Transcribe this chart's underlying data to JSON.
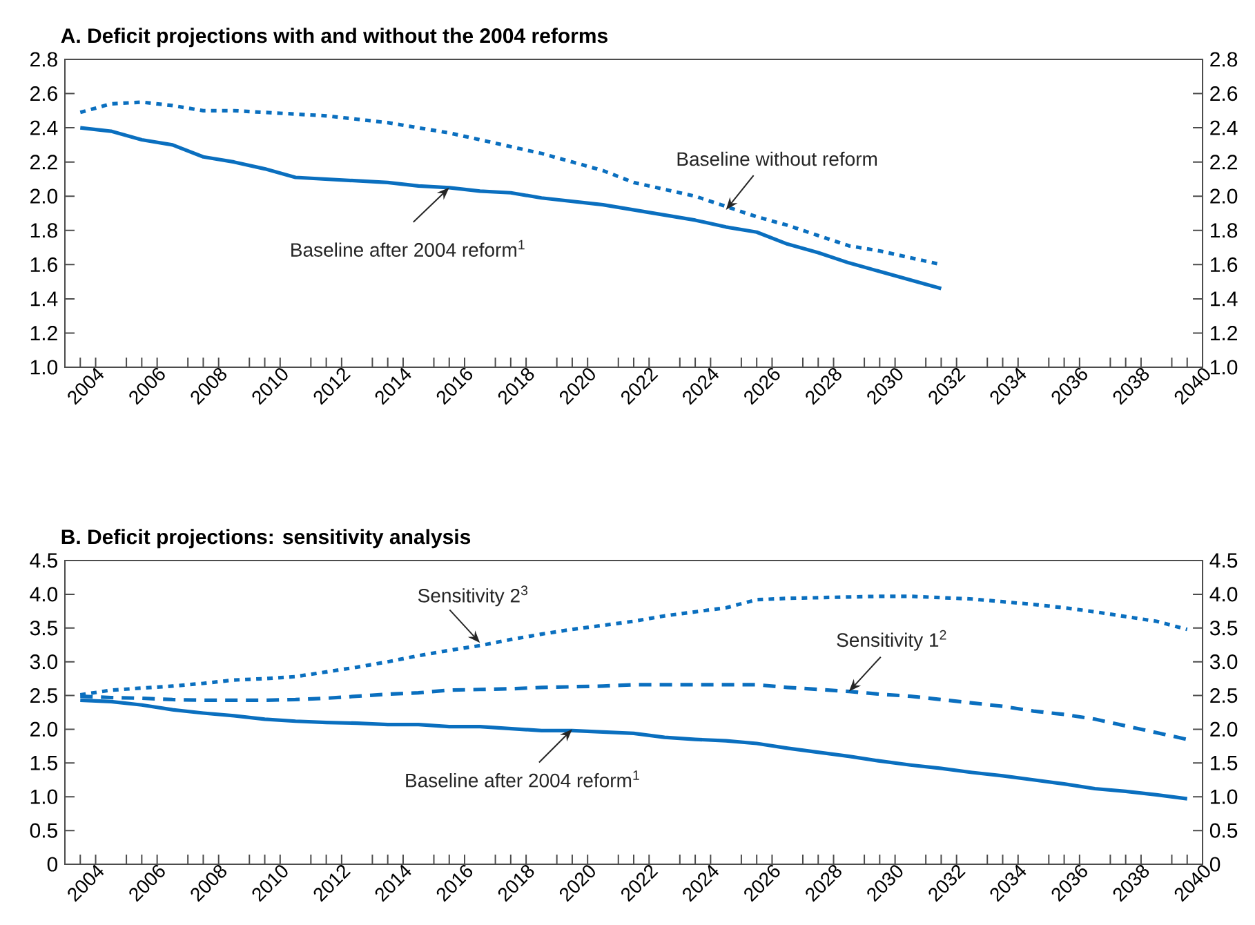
{
  "chart_data": [
    {
      "type": "line",
      "title": "A.  Deficit projections with and without the 2004 reforms",
      "xlim": [
        2003.5,
        2040.5
      ],
      "xticks": [
        2004,
        2006,
        2008,
        2010,
        2012,
        2014,
        2016,
        2018,
        2020,
        2022,
        2024,
        2026,
        2028,
        2030,
        2032,
        2034,
        2036,
        2038,
        2040,
        {
          "value": 2004.5,
          "label": null
        },
        {
          "value": 2005.5,
          "label": null
        },
        {
          "value": 2006.5,
          "label": null
        },
        {
          "value": 2007.5,
          "label": null
        },
        {
          "value": 2008.5,
          "label": null
        },
        {
          "value": 2009.5,
          "label": null
        },
        {
          "value": 2010.5,
          "label": null
        },
        {
          "value": 2011.5,
          "label": null
        },
        {
          "value": 2012.5,
          "label": null
        },
        {
          "value": 2013.5,
          "label": null
        },
        {
          "value": 2014.5,
          "label": null
        },
        {
          "value": 2015.5,
          "label": null
        },
        {
          "value": 2016.5,
          "label": null
        },
        {
          "value": 2017.5,
          "label": null
        },
        {
          "value": 2018.5,
          "label": null
        },
        {
          "value": 2019.5,
          "label": null
        },
        {
          "value": 2020.5,
          "label": null
        },
        {
          "value": 2021.5,
          "label": null
        },
        {
          "value": 2022.5,
          "label": null
        },
        {
          "value": 2023.5,
          "label": null
        },
        {
          "value": 2024.5,
          "label": null
        },
        {
          "value": 2025.5,
          "label": null
        },
        {
          "value": 2026.5,
          "label": null
        },
        {
          "value": 2027.5,
          "label": null
        },
        {
          "value": 2028.5,
          "label": null
        },
        {
          "value": 2029.5,
          "label": null
        },
        {
          "value": 2030.5,
          "label": null
        },
        {
          "value": 2031.5,
          "label": null
        },
        {
          "value": 2032.5,
          "label": null
        },
        {
          "value": 2033.5,
          "label": null
        },
        {
          "value": 2034.5,
          "label": null
        },
        {
          "value": 2035.5,
          "label": null
        },
        {
          "value": 2036.5,
          "label": null
        },
        {
          "value": 2037.5,
          "label": null
        },
        {
          "value": 2038.5,
          "label": null
        },
        {
          "value": 2039.5,
          "label": null
        }
      ],
      "ylim": [
        1.0,
        2.8
      ],
      "yticks": [
        {
          "value": 1,
          "label": "1.0"
        },
        1.2,
        1.4,
        1.6,
        1.8,
        {
          "value": 2,
          "label": "2.0"
        },
        2.2,
        2.4,
        2.6,
        2.8
      ],
      "y2lim": [
        1.0,
        2.8
      ],
      "y2ticks": [
        {
          "value": 1,
          "label": "1.0"
        },
        1.2,
        1.4,
        1.6,
        1.8,
        {
          "value": 2,
          "label": "2.0"
        },
        2.2,
        2.4,
        2.6,
        2.8
      ],
      "series": [
        {
          "color": "#0a6fbf",
          "line_style": "solid",
          "x": [
            2004,
            2005,
            2006,
            2007,
            2008,
            2009,
            2010,
            2011,
            2012,
            2013,
            2014,
            2015,
            2016,
            2017,
            2018,
            2019,
            2020,
            2021,
            2022,
            2023,
            2024,
            2025,
            2026,
            2027,
            2028,
            2029,
            2030,
            2031,
            2032
          ],
          "values": [
            2.4,
            2.38,
            2.33,
            2.3,
            2.23,
            2.2,
            2.16,
            2.11,
            2.1,
            2.09,
            2.08,
            2.06,
            2.05,
            2.03,
            2.02,
            1.99,
            1.97,
            1.95,
            1.92,
            1.89,
            1.86,
            1.82,
            1.79,
            1.72,
            1.67,
            1.61,
            1.56,
            1.51,
            1.46
          ]
        },
        {
          "color": "#0a6fbf",
          "line_style": "dotted",
          "x": [
            2004,
            2005,
            2006,
            2007,
            2008,
            2009,
            2010,
            2011,
            2012,
            2013,
            2014,
            2015,
            2016,
            2017,
            2018,
            2019,
            2020,
            2021,
            2022,
            2023,
            2024,
            2025,
            2026,
            2027,
            2028,
            2029,
            2030,
            2031,
            2032
          ],
          "values": [
            2.49,
            2.54,
            2.55,
            2.53,
            2.5,
            2.5,
            2.49,
            2.48,
            2.47,
            2.45,
            2.43,
            2.4,
            2.37,
            2.33,
            2.29,
            2.25,
            2.2,
            2.15,
            2.08,
            2.04,
            2.0,
            1.94,
            1.88,
            1.83,
            1.77,
            1.71,
            1.68,
            1.64,
            1.6
          ]
        }
      ],
      "annotations": [
        {
          "text": "Baseline without reform",
          "x": 2025,
          "y": 1.92
        },
        {
          "text": "Baseline after 2004 reform$^{1}$",
          "x": 2016,
          "y": 2.05
        }
      ]
    },
    {
      "type": "line",
      "title": "B.  Deficit projections: sensitivity analysis",
      "xlim": [
        2003.5,
        2040.5
      ],
      "xticks": [
        2004,
        2006,
        2008,
        2010,
        2012,
        2014,
        2016,
        2018,
        2020,
        2022,
        2024,
        2026,
        2028,
        2030,
        2032,
        2034,
        2036,
        2038,
        2040,
        {
          "value": 2004.5,
          "label": null
        },
        {
          "value": 2005.5,
          "label": null
        },
        {
          "value": 2006.5,
          "label": null
        },
        {
          "value": 2007.5,
          "label": null
        },
        {
          "value": 2008.5,
          "label": null
        },
        {
          "value": 2009.5,
          "label": null
        },
        {
          "value": 2010.5,
          "label": null
        },
        {
          "value": 2011.5,
          "label": null
        },
        {
          "value": 2012.5,
          "label": null
        },
        {
          "value": 2013.5,
          "label": null
        },
        {
          "value": 2014.5,
          "label": null
        },
        {
          "value": 2015.5,
          "label": null
        },
        {
          "value": 2016.5,
          "label": null
        },
        {
          "value": 2017.5,
          "label": null
        },
        {
          "value": 2018.5,
          "label": null
        },
        {
          "value": 2019.5,
          "label": null
        },
        {
          "value": 2020.5,
          "label": null
        },
        {
          "value": 2021.5,
          "label": null
        },
        {
          "value": 2022.5,
          "label": null
        },
        {
          "value": 2023.5,
          "label": null
        },
        {
          "value": 2024.5,
          "label": null
        },
        {
          "value": 2025.5,
          "label": null
        },
        {
          "value": 2026.5,
          "label": null
        },
        {
          "value": 2027.5,
          "label": null
        },
        {
          "value": 2028.5,
          "label": null
        },
        {
          "value": 2029.5,
          "label": null
        },
        {
          "value": 2030.5,
          "label": null
        },
        {
          "value": 2031.5,
          "label": null
        },
        {
          "value": 2032.5,
          "label": null
        },
        {
          "value": 2033.5,
          "label": null
        },
        {
          "value": 2034.5,
          "label": null
        },
        {
          "value": 2035.5,
          "label": null
        },
        {
          "value": 2036.5,
          "label": null
        },
        {
          "value": 2037.5,
          "label": null
        },
        {
          "value": 2038.5,
          "label": null
        },
        {
          "value": 2039.5,
          "label": null
        }
      ],
      "ylim": [
        0,
        4.5
      ],
      "yticks": [
        0,
        0.5,
        {
          "value": 1,
          "label": "1.0"
        },
        1.5,
        {
          "value": 2,
          "label": "2.0"
        },
        2.5,
        {
          "value": 3,
          "label": "3.0"
        },
        3.5,
        {
          "value": 4,
          "label": "4.0"
        },
        4.5
      ],
      "y2lim": [
        0,
        4.5
      ],
      "y2ticks": [
        0,
        0.5,
        {
          "value": 1,
          "label": "1.0"
        },
        1.5,
        {
          "value": 2,
          "label": "2.0"
        },
        2.5,
        {
          "value": 3,
          "label": "3.0"
        },
        3.5,
        {
          "value": 4,
          "label": "4.0"
        },
        4.5
      ],
      "x": [
        2004,
        2005,
        2006,
        2007,
        2008,
        2009,
        2010,
        2011,
        2012,
        2013,
        2014,
        2015,
        2016,
        2017,
        2018,
        2019,
        2020,
        2021,
        2022,
        2023,
        2024,
        2025,
        2026,
        2027,
        2028,
        2029,
        2030,
        2031,
        2032,
        2033,
        2034,
        2035,
        2036,
        2037,
        2038,
        2039,
        2040
      ],
      "series": [
        {
          "color": "#0a6fbf",
          "line_style": "solid",
          "values": [
            2.43,
            2.41,
            2.36,
            2.29,
            2.24,
            2.2,
            2.15,
            2.12,
            2.1,
            2.09,
            2.07,
            2.07,
            2.04,
            2.04,
            2.01,
            1.98,
            1.98,
            1.96,
            1.94,
            1.88,
            1.85,
            1.83,
            1.79,
            1.72,
            1.66,
            1.6,
            1.53,
            1.47,
            1.42,
            1.36,
            1.31,
            1.25,
            1.19,
            1.12,
            1.08,
            1.03,
            0.97
          ]
        },
        {
          "color": "#0a6fbf",
          "line_style": "dashed",
          "values": [
            2.49,
            2.47,
            2.46,
            2.44,
            2.43,
            2.43,
            2.43,
            2.44,
            2.46,
            2.49,
            2.52,
            2.54,
            2.58,
            2.59,
            2.6,
            2.62,
            2.63,
            2.64,
            2.66,
            2.66,
            2.66,
            2.66,
            2.66,
            2.62,
            2.59,
            2.56,
            2.52,
            2.49,
            2.44,
            2.39,
            2.34,
            2.27,
            2.22,
            2.15,
            2.05,
            1.95,
            1.85
          ]
        },
        {
          "color": "#0a6fbf",
          "line_style": "dotted",
          "values": [
            2.51,
            2.58,
            2.61,
            2.64,
            2.68,
            2.73,
            2.75,
            2.78,
            2.85,
            2.92,
            3.0,
            3.09,
            3.17,
            3.24,
            3.33,
            3.41,
            3.48,
            3.54,
            3.6,
            3.68,
            3.74,
            3.8,
            3.92,
            3.94,
            3.95,
            3.96,
            3.97,
            3.97,
            3.95,
            3.93,
            3.89,
            3.85,
            3.8,
            3.74,
            3.67,
            3.6,
            3.48
          ]
        }
      ],
      "annotations": [
        {
          "text": "Sensitivity 2$^{3}$",
          "x": 2017,
          "y": 3.28
        },
        {
          "text": "Sensitivity 1$^{2}$",
          "x": 2029,
          "y": 2.56
        },
        {
          "text": "Baseline after 2004 reform$^{1}$",
          "x": 2020,
          "y": 2.0
        }
      ]
    }
  ]
}
